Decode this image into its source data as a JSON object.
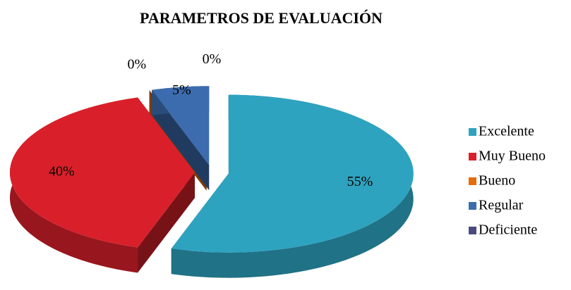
{
  "chart_data": {
    "type": "pie3d",
    "title": "PARAMETROS DE EVALUACIÓN",
    "categories": [
      "Excelente",
      "Muy Bueno",
      "Bueno",
      "Regular",
      "Deficiente"
    ],
    "values": [
      55,
      40,
      0,
      5,
      0
    ],
    "value_labels": [
      "55%",
      "40%",
      "0%",
      "5%",
      "0%"
    ],
    "colors": [
      "#2ea3c0",
      "#d9202a",
      "#e46c0a",
      "#3c6cae",
      "#4a4a80"
    ],
    "legend": "right"
  }
}
